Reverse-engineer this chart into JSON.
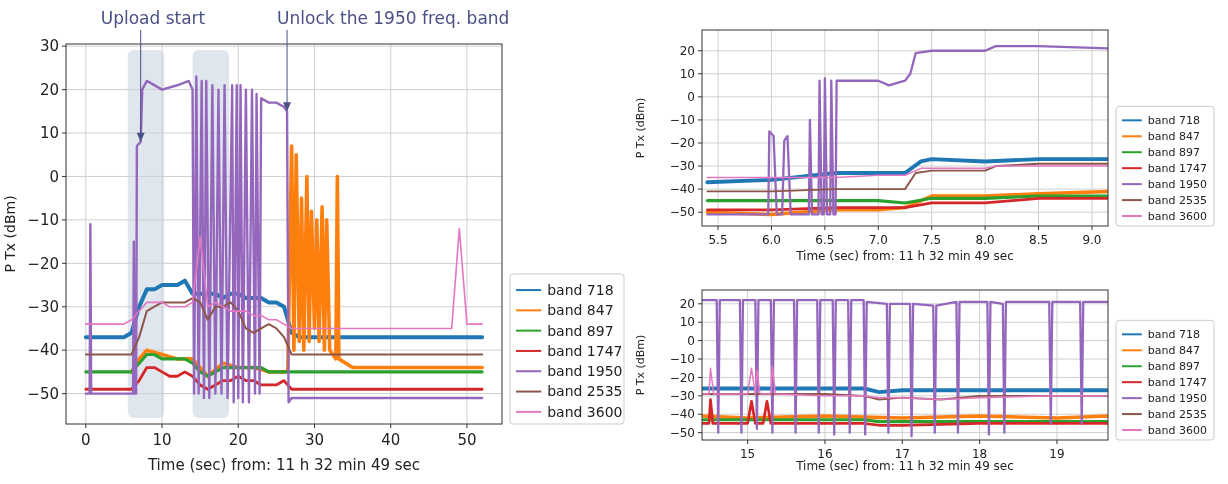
{
  "chart_data": [
    {
      "type": "line",
      "xlabel": "Time (sec) from: 11 h 32 min 49 sec",
      "ylabel": "P Tx (dBm)",
      "xlim": [
        -2.6,
        54.6
      ],
      "ylim": [
        -57,
        30.5
      ],
      "xticks": [
        0,
        10,
        20,
        30,
        40,
        50
      ],
      "yticks": [
        -50,
        -40,
        -30,
        -20,
        -10,
        0,
        10,
        20,
        30
      ],
      "grid": true,
      "legend": "right",
      "annotations": [
        {
          "text": "Upload start",
          "x": 7.2,
          "y": 8
        },
        {
          "text": "Unlock the 1950 freq. band",
          "x": 26.4,
          "y": 15
        }
      ],
      "bands": [
        {
          "axis": "x",
          "from": 5.5,
          "to": 10.3,
          "color": "#dfe6ee"
        },
        {
          "axis": "x",
          "from": 14,
          "to": 18.8,
          "color": "#dfe6ee"
        }
      ],
      "x": [
        0,
        1,
        2,
        3,
        4,
        5,
        6,
        7,
        8,
        9,
        10,
        11,
        12,
        13,
        14,
        15,
        16,
        17,
        18,
        19,
        20,
        21,
        22,
        23,
        24,
        25,
        26,
        27,
        28,
        29,
        30,
        31,
        32,
        33,
        34,
        35,
        36,
        37,
        38,
        39,
        40,
        41,
        42,
        43,
        44,
        45,
        46,
        47,
        48,
        49,
        50,
        51,
        52
      ],
      "series": [
        {
          "name": "band 718",
          "color": "#1f77b4",
          "values": [
            -37,
            -37,
            -37,
            -37,
            -37,
            -37,
            -36,
            -30,
            -26,
            -26,
            -25,
            -25,
            -25,
            -24,
            -27,
            -27,
            -27,
            -27,
            -28,
            -27,
            -27,
            -28,
            -28,
            -28,
            -29,
            -29,
            -30,
            -36,
            -37,
            -37,
            -37,
            -37,
            -37,
            -37,
            -37,
            -37,
            -37,
            -37,
            -37,
            -37,
            -37,
            -37,
            -37,
            -37,
            -37,
            -37,
            -37,
            -37,
            -37,
            -37,
            -37,
            -37,
            -37
          ]
        },
        {
          "name": "band 847",
          "color": "#ff7f0e",
          "x": [
            6,
            7,
            8,
            10,
            12,
            14,
            16,
            18,
            20,
            22,
            24,
            26,
            26.5,
            27,
            27.3,
            27.6,
            28,
            28.3,
            28.6,
            29,
            29.3,
            29.6,
            30,
            30.3,
            30.6,
            31,
            31.3,
            31.6,
            32,
            32.8,
            33,
            33.2,
            35,
            40,
            45,
            50,
            52
          ],
          "values": [
            -45,
            -42,
            -40,
            -41,
            -42,
            -42,
            -46,
            -43,
            -44,
            -44,
            -45,
            -45,
            -45,
            7,
            -40,
            5,
            -38,
            -5,
            -40,
            0,
            -38,
            -8,
            -35,
            -10,
            -38,
            -7,
            -40,
            -10,
            -40,
            -42,
            0,
            -42,
            -44,
            -44,
            -44,
            -44,
            -44
          ]
        },
        {
          "name": "band 897",
          "color": "#2ca02c",
          "values": [
            -45,
            -45,
            -45,
            -45,
            -45,
            -45,
            -45,
            -43,
            -41,
            -41,
            -42,
            -42,
            -42,
            -42,
            -43,
            -45,
            -46,
            -45,
            -44,
            -44,
            -44,
            -44,
            -44,
            -44,
            -45,
            -45,
            -45,
            -45,
            -45,
            -45,
            -45,
            -45,
            -45,
            -45,
            -45,
            -45,
            -45,
            -45,
            -45,
            -45,
            -45,
            -45,
            -45,
            -45,
            -45,
            -45,
            -45,
            -45,
            -45,
            -45,
            -45,
            -45,
            -45
          ]
        },
        {
          "name": "band 1747",
          "color": "#d62728",
          "values": [
            -49,
            -49,
            -49,
            -49,
            -49,
            -49,
            -49,
            -47,
            -44,
            -44,
            -45,
            -46,
            -46,
            -45,
            -46,
            -48,
            -49,
            -48,
            -47,
            -47,
            -46,
            -47,
            -47,
            -48,
            -48,
            -48,
            -47,
            -49,
            -49,
            -49,
            -49,
            -49,
            -49,
            -49,
            -49,
            -49,
            -49,
            -49,
            -49,
            -49,
            -49,
            -49,
            -49,
            -49,
            -49,
            -49,
            -49,
            -49,
            -49,
            -49,
            -49,
            -49,
            -49
          ]
        },
        {
          "name": "band 1950",
          "color": "#9467bd",
          "x": [
            0,
            0.5,
            0.6,
            0.7,
            5.8,
            6.2,
            6.3,
            6.4,
            6.6,
            6.7,
            7.2,
            7.4,
            8,
            10,
            12,
            13.5,
            14,
            14.2,
            14.5,
            14.8,
            15.2,
            15.5,
            15.8,
            16.2,
            16.6,
            17,
            17.4,
            17.8,
            18.2,
            18.6,
            19.2,
            19.4,
            19.8,
            20,
            20.3,
            20.6,
            21,
            21.4,
            21.8,
            22.2,
            22.4,
            22.8,
            23,
            24,
            25,
            26,
            26.4,
            26.6,
            27,
            30,
            35,
            40,
            45,
            50,
            52
          ],
          "values": [
            -50,
            -50,
            -11,
            -50,
            -50,
            -50,
            -15,
            -50,
            -50,
            7,
            8,
            20,
            22,
            20,
            21,
            22,
            20,
            -50,
            23,
            -50,
            22,
            -51,
            22,
            -51,
            21,
            -50,
            20,
            -50,
            21,
            -51,
            21,
            -52,
            21,
            -51,
            21,
            -52,
            20,
            -52,
            20,
            -50,
            19,
            -50,
            18,
            17,
            17,
            16,
            15,
            -52,
            -51,
            -51,
            -51,
            -51,
            -51,
            -51,
            -51
          ]
        },
        {
          "name": "band 2535",
          "color": "#8c564b",
          "values": [
            -41,
            -41,
            -41,
            -41,
            -41,
            -41,
            -41,
            -37,
            -31,
            -30,
            -29,
            -29,
            -29,
            -29,
            -28,
            -29,
            -33,
            -30,
            -30,
            -29,
            -31,
            -35,
            -36,
            -35,
            -34,
            -35,
            -37,
            -41,
            -41,
            -41,
            -41,
            -41,
            -41,
            -41,
            -41,
            -41,
            -41,
            -41,
            -41,
            -41,
            -41,
            -41,
            -41,
            -41,
            -41,
            -41,
            -41,
            -41,
            -41,
            -41,
            -41,
            -41,
            -41
          ]
        },
        {
          "name": "band 3600",
          "color": "#e377c2",
          "values": [
            -34,
            -34,
            -34,
            -34,
            -34,
            -34,
            -33,
            -31,
            -29,
            -29,
            -29,
            -30,
            -30,
            -30,
            -29,
            -14,
            -30,
            -29,
            -30,
            -31,
            -31,
            -31,
            -32,
            -32,
            -33,
            -33,
            -34,
            -35,
            -35,
            -35,
            -35,
            -35,
            -35,
            -35,
            -35,
            -35,
            -35,
            -35,
            -35,
            -35,
            -35,
            -35,
            -35,
            -35,
            -35,
            -35,
            -35,
            -35,
            -35,
            -12,
            -34,
            -34,
            -34
          ]
        }
      ]
    },
    {
      "type": "line",
      "xlabel": "Time (sec) from: 11 h 32 min 49 sec",
      "ylabel": "P Tx (dBm)",
      "xlim": [
        5.35,
        9.15
      ],
      "ylim": [
        -56,
        29
      ],
      "xticks": [
        5.5,
        {
          "value": 6,
          "label": "6.0"
        },
        6.5,
        {
          "value": 7,
          "label": "7.0"
        },
        7.5,
        {
          "value": 8,
          "label": "8.0"
        },
        8.5,
        {
          "value": 9,
          "label": "9.0"
        }
      ],
      "yticks": [
        -50,
        -40,
        -30,
        -20,
        -10,
        0,
        10,
        20
      ],
      "grid": true,
      "legend": "right",
      "series": [
        {
          "name": "band 718",
          "color": "#1f77b4",
          "x": [
            5.4,
            6,
            6.6,
            7,
            7.25,
            7.4,
            7.5,
            8,
            8.5,
            9.15
          ],
          "values": [
            -37,
            -36,
            -33,
            -33,
            -33,
            -28,
            -27,
            -28,
            -27,
            -27
          ]
        },
        {
          "name": "band 847",
          "color": "#ff7f0e",
          "x": [
            5.4,
            6,
            6.6,
            7,
            7.25,
            7.5,
            8,
            8.5,
            9.15
          ],
          "values": [
            -50,
            -51,
            -49,
            -49,
            -48,
            -43,
            -43,
            -42,
            -41
          ]
        },
        {
          "name": "band 897",
          "color": "#2ca02c",
          "x": [
            5.4,
            6,
            6.6,
            7,
            7.25,
            7.5,
            8,
            8.5,
            9.15
          ],
          "values": [
            -45,
            -45,
            -45,
            -45,
            -46,
            -44,
            -44,
            -43,
            -43
          ]
        },
        {
          "name": "band 1747",
          "color": "#d62728",
          "x": [
            5.4,
            6,
            6.6,
            7,
            7.25,
            7.5,
            8,
            8.5,
            9.15
          ],
          "values": [
            -49,
            -49,
            -48,
            -48,
            -48,
            -46,
            -46,
            -44,
            -44
          ]
        },
        {
          "name": "band 1950",
          "color": "#9467bd",
          "x": [
            5.4,
            5.97,
            5.98,
            6.02,
            6.05,
            6.1,
            6.12,
            6.15,
            6.18,
            6.35,
            6.36,
            6.38,
            6.44,
            6.45,
            6.47,
            6.49,
            6.5,
            6.52,
            6.55,
            6.56,
            6.58,
            6.6,
            6.61,
            6.65,
            7,
            7.1,
            7.25,
            7.3,
            7.35,
            7.5,
            8,
            8.1,
            8.5,
            9.15
          ],
          "values": [
            -51,
            -51,
            -15,
            -17,
            -51,
            -51,
            -19,
            -17,
            -51,
            -51,
            -10,
            -51,
            -51,
            7,
            -51,
            -51,
            8,
            -51,
            -51,
            7,
            -51,
            -51,
            7,
            7,
            7,
            5,
            7,
            10,
            19,
            20,
            20,
            22,
            22,
            21
          ]
        },
        {
          "name": "band 2535",
          "color": "#8c564b",
          "x": [
            5.4,
            6,
            6.6,
            7,
            7.25,
            7.35,
            7.5,
            8,
            8.1,
            8.5,
            9.15
          ],
          "values": [
            -41,
            -41,
            -40,
            -40,
            -40,
            -33,
            -32,
            -32,
            -30,
            -29,
            -29
          ]
        },
        {
          "name": "band 3600",
          "color": "#e377c2",
          "x": [
            5.4,
            6,
            6.6,
            7,
            7.25,
            7.4,
            7.5,
            8,
            8.1,
            8.5,
            9.15
          ],
          "values": [
            -35,
            -35,
            -35,
            -34,
            -34,
            -31,
            -31,
            -31,
            -30,
            -30,
            -30
          ]
        }
      ]
    },
    {
      "type": "line",
      "xlabel": "Time (sec) from: 11 h 32 min 49 sec",
      "ylabel": "P Tx (dBm)",
      "xlim": [
        14.41,
        19.66
      ],
      "ylim": [
        -54,
        27.5
      ],
      "xticks": [
        15,
        16,
        17,
        18,
        19
      ],
      "yticks": [
        -50,
        -40,
        -30,
        -20,
        -10,
        0,
        10,
        20
      ],
      "grid": true,
      "legend": "right",
      "series": [
        {
          "name": "band 718",
          "color": "#1f77b4",
          "x": [
            14.41,
            15,
            16,
            16.5,
            16.7,
            17,
            18,
            19,
            19.66
          ],
          "values": [
            -26,
            -26,
            -26,
            -26,
            -28,
            -27,
            -27,
            -27,
            -27
          ]
        },
        {
          "name": "band 847",
          "color": "#ff7f0e",
          "x": [
            14.41,
            15,
            16,
            17,
            18,
            19,
            19.66
          ],
          "values": [
            -41,
            -42,
            -41,
            -42,
            -41,
            -42,
            -41
          ]
        },
        {
          "name": "band 897",
          "color": "#2ca02c",
          "x": [
            14.41,
            15,
            16,
            16.5,
            16.7,
            17,
            18,
            19,
            19.66
          ],
          "values": [
            -43,
            -43,
            -43,
            -43,
            -44,
            -44,
            -44,
            -44,
            -44
          ]
        },
        {
          "name": "band 1747",
          "color": "#d62728",
          "x": [
            14.41,
            14.5,
            14.52,
            14.55,
            15,
            15.05,
            15.1,
            15.2,
            15.25,
            15.3,
            16,
            16.5,
            16.7,
            17,
            18,
            19,
            19.66
          ],
          "values": [
            -45,
            -45,
            -32,
            -45,
            -45,
            -33,
            -45,
            -45,
            -33,
            -45,
            -45,
            -45,
            -46,
            -46,
            -45,
            -45,
            -45
          ]
        },
        {
          "name": "band 1950",
          "color": "#9467bd",
          "x": [
            14.41,
            14.6,
            14.62,
            14.64,
            14.9,
            14.92,
            14.94,
            15.1,
            15.12,
            15.14,
            15.3,
            15.32,
            15.34,
            15.6,
            15.62,
            15.64,
            15.9,
            15.92,
            15.94,
            16.1,
            16.12,
            16.14,
            16.3,
            16.32,
            16.34,
            16.5,
            16.52,
            16.54,
            16.8,
            16.82,
            16.84,
            17.1,
            17.12,
            17.14,
            17.4,
            17.42,
            17.44,
            17.7,
            17.72,
            17.74,
            18.1,
            18.12,
            18.14,
            18.3,
            18.32,
            18.34,
            18.9,
            18.92,
            18.94,
            19.3,
            19.32,
            19.34,
            19.66
          ],
          "values": [
            22,
            22,
            -50,
            22,
            22,
            -50,
            22,
            22,
            -48,
            22,
            22,
            -50,
            22,
            22,
            -50,
            22,
            22,
            -50,
            22,
            22,
            -51,
            22,
            22,
            -50,
            22,
            22,
            -51,
            21,
            20,
            -50,
            20,
            20,
            -52,
            20,
            19,
            -50,
            19,
            21,
            -50,
            21,
            21,
            -51,
            21,
            20,
            -50,
            21,
            21,
            -45,
            21,
            21,
            -45,
            21,
            21
          ]
        },
        {
          "name": "band 2535",
          "color": "#8c564b",
          "x": [
            14.41,
            15,
            16,
            16.5,
            16.7,
            17,
            17.5,
            18,
            19,
            19.66
          ],
          "values": [
            -29,
            -29,
            -29,
            -30,
            -32,
            -31,
            -32,
            -30,
            -30,
            -30
          ]
        },
        {
          "name": "band 3600",
          "color": "#e377c2",
          "x": [
            14.41,
            14.5,
            14.52,
            14.56,
            15,
            15.05,
            15.1,
            15.12,
            15.16,
            15.3,
            15.32,
            15.36,
            16,
            16.5,
            16.7,
            17,
            17.5,
            18,
            19,
            19.66
          ],
          "values": [
            -29,
            -29,
            -15,
            -29,
            -29,
            -15,
            -29,
            -16,
            -29,
            -29,
            -14,
            -29,
            -30,
            -30,
            -31,
            -31,
            -32,
            -31,
            -30,
            -30
          ]
        }
      ]
    }
  ]
}
